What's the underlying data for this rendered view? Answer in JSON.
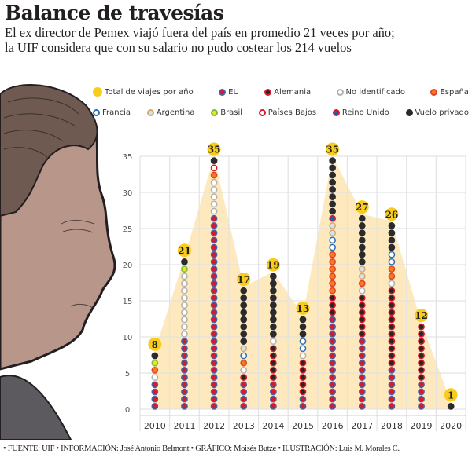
{
  "header": {
    "title": "Balance de travesías",
    "subtitle_line1": "El ex director de Pemex viajó fuera del país en promedio 21 veces por año;",
    "subtitle_line2": "la UIF considera que con su salario no pudo costear los 214 vuelos"
  },
  "legend": {
    "row1": [
      {
        "label": "Total de viajes por año",
        "key": "total"
      },
      {
        "label": "EU",
        "key": "eu"
      },
      {
        "label": "Alemania",
        "key": "alemania"
      },
      {
        "label": "No identificado",
        "key": "noid"
      },
      {
        "label": "España",
        "key": "espana"
      }
    ],
    "row2": [
      {
        "label": "Francia",
        "key": "francia"
      },
      {
        "label": "Argentina",
        "key": "argentina"
      },
      {
        "label": "Brasil",
        "key": "brasil"
      },
      {
        "label": "Países Bajos",
        "key": "paisesbajos"
      },
      {
        "label": "Reino Unido",
        "key": "reinounido"
      },
      {
        "label": "Vuelo privado",
        "key": "privado"
      }
    ]
  },
  "styles": {
    "total": {
      "fill": "#f7cc1b",
      "stroke": "#f7cc1b"
    },
    "eu": {
      "fill": "#d7192d",
      "stroke": "#4d5fa3"
    },
    "alemania": {
      "fill": "#2b2426",
      "stroke": "#d7192d"
    },
    "noid": {
      "fill": "#ffffff",
      "stroke": "#b5b0ad"
    },
    "espana": {
      "fill": "#f47b20",
      "stroke": "#e0432a"
    },
    "francia": {
      "fill": "#ffffff",
      "stroke": "#2e6db4"
    },
    "argentina": {
      "fill": "#cfe3f0",
      "stroke": "#d9a76a"
    },
    "brasil": {
      "fill": "#e9e61e",
      "stroke": "#7dba3c"
    },
    "paisesbajos": {
      "fill": "#ffffff",
      "stroke": "#d7192d"
    },
    "reinounido": {
      "fill": "#1f5fa8",
      "stroke": "#d7192d"
    },
    "privado": {
      "fill": "#2b2b2d",
      "stroke": "#2b2b2d"
    },
    "area": "#fde9bd",
    "grid": "#e3e3e3"
  },
  "footer": "• FUENTE: UIF • INFORMACIÓN: José Antonio Belmont • GRÁFICO: Moisés Butze • ILUSTRACIÓN: Luis M. Morales C.",
  "chart_data": {
    "type": "stacked dot column + area",
    "title": "Balance de travesías",
    "categories": [
      "2010",
      "2011",
      "2012",
      "2013",
      "2014",
      "2015",
      "2016",
      "2017",
      "2018",
      "2019",
      "2020"
    ],
    "totals": [
      8,
      21,
      35,
      17,
      19,
      13,
      35,
      27,
      26,
      12,
      1
    ],
    "ylim": [
      0,
      35
    ],
    "yticks": [
      0,
      5,
      10,
      15,
      20,
      25,
      30,
      35
    ],
    "grid": true,
    "legend_position": "top",
    "stack_order": [
      "eu",
      "alemania",
      "noid",
      "espana",
      "francia",
      "argentina",
      "brasil",
      "paisesbajos",
      "reinounido",
      "privado"
    ],
    "series": [
      {
        "key": "eu",
        "name": "EU",
        "values": [
          4,
          10,
          27,
          4,
          4,
          2,
          13,
          10,
          6,
          4,
          0
        ]
      },
      {
        "key": "alemania",
        "name": "Alemania",
        "values": [
          0,
          0,
          0,
          1,
          5,
          5,
          3,
          6,
          11,
          8,
          0
        ]
      },
      {
        "key": "noid",
        "name": "No identificado",
        "values": [
          1,
          9,
          5,
          1,
          1,
          1,
          0,
          1,
          1,
          0,
          0
        ]
      },
      {
        "key": "espana",
        "name": "España",
        "values": [
          1,
          0,
          1,
          1,
          0,
          0,
          6,
          1,
          2,
          0,
          0
        ]
      },
      {
        "key": "francia",
        "name": "Francia",
        "values": [
          0,
          0,
          0,
          1,
          0,
          2,
          2,
          0,
          2,
          0,
          0
        ]
      },
      {
        "key": "argentina",
        "name": "Argentina",
        "values": [
          0,
          0,
          0,
          1,
          0,
          0,
          2,
          2,
          0,
          0,
          0
        ]
      },
      {
        "key": "brasil",
        "name": "Brasil",
        "values": [
          1,
          1,
          0,
          0,
          0,
          0,
          0,
          0,
          0,
          0,
          0
        ]
      },
      {
        "key": "paisesbajos",
        "name": "Países Bajos",
        "values": [
          0,
          0,
          1,
          0,
          0,
          0,
          0,
          0,
          0,
          0,
          0
        ]
      },
      {
        "key": "reinounido",
        "name": "Reino Unido",
        "values": [
          0,
          0,
          0,
          0,
          0,
          0,
          1,
          0,
          0,
          0,
          0
        ]
      },
      {
        "key": "privado",
        "name": "Vuelo privado",
        "values": [
          1,
          1,
          1,
          8,
          9,
          3,
          8,
          7,
          4,
          0,
          1
        ]
      }
    ]
  }
}
